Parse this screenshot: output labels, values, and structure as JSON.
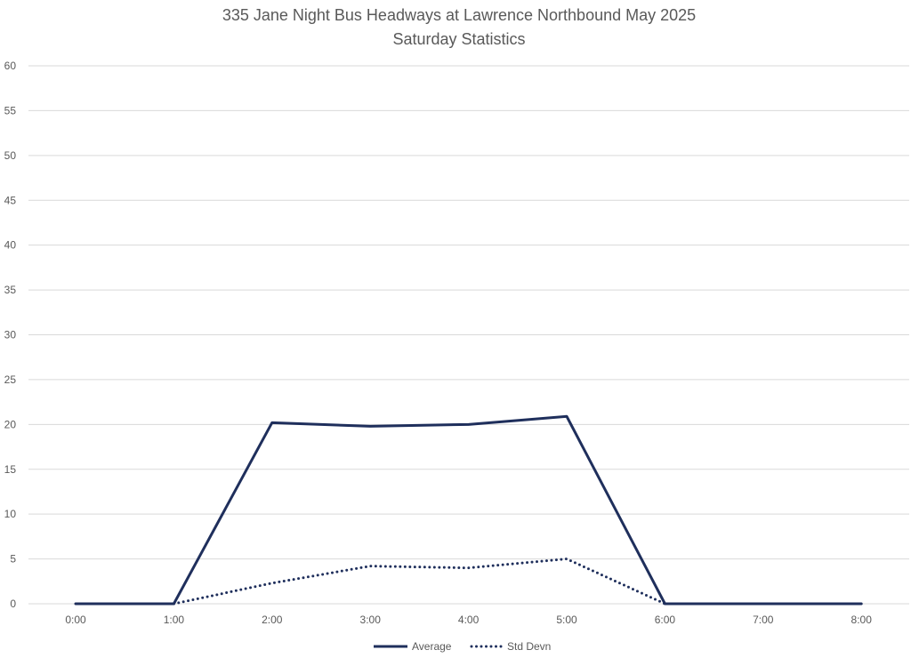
{
  "chart_data": {
    "type": "line",
    "title": "335 Jane Night Bus Headways at Lawrence Northbound May 2025",
    "subtitle": "Saturday Statistics",
    "xlabel": "",
    "ylabel": "",
    "categories": [
      "0:00",
      "1:00",
      "2:00",
      "3:00",
      "4:00",
      "5:00",
      "6:00",
      "7:00",
      "8:00"
    ],
    "y_ticks": [
      "0",
      "5",
      "10",
      "15",
      "20",
      "25",
      "30",
      "35",
      "40",
      "45",
      "50",
      "55",
      "60"
    ],
    "ylim": [
      0,
      60
    ],
    "grid": true,
    "legend_position": "bottom",
    "series": [
      {
        "name": "Average",
        "values": [
          0,
          0,
          20.2,
          19.8,
          20.0,
          20.9,
          0,
          0,
          0
        ],
        "color": "#1f2f5c",
        "style": "solid"
      },
      {
        "name": "Std Devn",
        "values": [
          null,
          0,
          2.3,
          4.2,
          4.0,
          5.0,
          0,
          null,
          null
        ],
        "color": "#1f2f5c",
        "style": "dotted"
      }
    ]
  }
}
